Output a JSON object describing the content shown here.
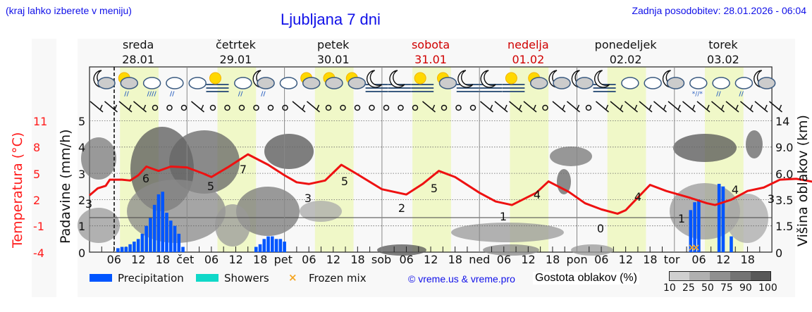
{
  "header": {
    "hint": "(kraj lahko izberete v meniju)",
    "title": "Ljubljana 7 dni",
    "updated": "Zadnja posodobitev: 28.01.2026 - 06:04"
  },
  "days": [
    {
      "name": "sreda",
      "date": "28.01",
      "weekend": false
    },
    {
      "name": "četrtek",
      "date": "29.01",
      "weekend": false
    },
    {
      "name": "petek",
      "date": "30.01",
      "weekend": false
    },
    {
      "name": "sobota",
      "date": "31.01",
      "weekend": true
    },
    {
      "name": "nedelja",
      "date": "01.02",
      "weekend": true
    },
    {
      "name": "ponedeljek",
      "date": "02.02",
      "weekend": false
    },
    {
      "name": "torek",
      "date": "03.02",
      "weekend": false
    }
  ],
  "axes": {
    "temp_label": "Temperatura (°C)",
    "temp_ticks": [
      "11",
      "8",
      "5",
      "2",
      "-1",
      "-4"
    ],
    "precip_label": "Padavine (mm/h)",
    "precip_ticks": [
      "5",
      "4",
      "3",
      "2",
      "1",
      "0"
    ],
    "cloud_label": "Višina oblakov (km)",
    "cloud_ticks": [
      "14",
      "9.0",
      "6.0",
      "3.5",
      "1.5",
      "0"
    ],
    "x_ticks": [
      "06",
      "12",
      "18",
      "čet",
      "06",
      "12",
      "18",
      "pet",
      "06",
      "12",
      "18",
      "sob",
      "06",
      "12",
      "18",
      "ned",
      "06",
      "12",
      "18",
      "pon",
      "06",
      "12",
      "18",
      "tor",
      "06",
      "12",
      "18"
    ]
  },
  "legend": {
    "precipitation": "Precipitation",
    "showers": "Showers",
    "frozen": "Frozen mix",
    "copyright": "© vreme.us & vreme.pro",
    "density_label": "Gostota oblakov (%)",
    "density_ticks": [
      "10",
      "25",
      "50",
      "75",
      "90",
      "100"
    ]
  },
  "colors": {
    "precipitation": "#0055ff",
    "showers": "#10d8c8",
    "frozen": "#f5a623",
    "temperature": "#ee1111",
    "daylight_band": "#f0f8c8",
    "link": "#1010e8",
    "weekend": "#d00000"
  },
  "chart_data": {
    "type": "line+bar",
    "title": "Ljubljana 7 dni",
    "xlabel": "",
    "x_range": [
      "28.01 00:00",
      "03.02 24:00"
    ],
    "series": [
      {
        "name": "Temperatura (°C)",
        "type": "line",
        "labels_shown": [
          {
            "time": "28.01 00",
            "value": 3
          },
          {
            "time": "28.01 14",
            "value": 6
          },
          {
            "time": "29.01 06",
            "value": 5
          },
          {
            "time": "29.01 15",
            "value": 7
          },
          {
            "time": "30.01 06",
            "value": 3
          },
          {
            "time": "30.01 15",
            "value": 5
          },
          {
            "time": "31.01 06",
            "value": 2
          },
          {
            "time": "31.01 15",
            "value": 5
          },
          {
            "time": "01.02 06",
            "value": 1
          },
          {
            "time": "01.02 15",
            "value": 4
          },
          {
            "time": "02.02 06",
            "value": 0
          },
          {
            "time": "02.02 15",
            "value": 4
          },
          {
            "time": "03.02 06",
            "value": 1
          },
          {
            "time": "03.02 15",
            "value": 4
          },
          {
            "time": "03.02 24",
            "value": 3
          }
        ]
      },
      {
        "name": "Precipitation (mm/h)",
        "type": "bar",
        "values": [
          {
            "time": "28.01 07",
            "value": 0.15
          },
          {
            "time": "28.01 08",
            "value": 0.2
          },
          {
            "time": "28.01 09",
            "value": 0.2
          },
          {
            "time": "28.01 10",
            "value": 0.3
          },
          {
            "time": "28.01 11",
            "value": 0.4
          },
          {
            "time": "28.01 12",
            "value": 0.5
          },
          {
            "time": "28.01 13",
            "value": 0.7
          },
          {
            "time": "28.01 14",
            "value": 1.0
          },
          {
            "time": "28.01 15",
            "value": 1.3
          },
          {
            "time": "28.01 16",
            "value": 1.8
          },
          {
            "time": "28.01 17",
            "value": 2.2
          },
          {
            "time": "28.01 18",
            "value": 2.3
          },
          {
            "time": "28.01 19",
            "value": 1.5
          },
          {
            "time": "28.01 20",
            "value": 1.2
          },
          {
            "time": "28.01 21",
            "value": 1.0
          },
          {
            "time": "28.01 22",
            "value": 0.7
          },
          {
            "time": "28.01 23",
            "value": 0.2
          },
          {
            "time": "29.01 17",
            "value": 0.2
          },
          {
            "time": "29.01 18",
            "value": 0.3
          },
          {
            "time": "29.01 19",
            "value": 0.5
          },
          {
            "time": "29.01 20",
            "value": 0.6
          },
          {
            "time": "29.01 21",
            "value": 0.6
          },
          {
            "time": "29.01 22",
            "value": 0.5
          },
          {
            "time": "29.01 23",
            "value": 0.5
          },
          {
            "time": "30.01 00",
            "value": 0.4
          },
          {
            "time": "03.02 04",
            "value": 1.6
          },
          {
            "time": "03.02 05",
            "value": 1.9
          },
          {
            "time": "03.02 06",
            "value": 2.0
          },
          {
            "time": "03.02 11",
            "value": 2.6
          },
          {
            "time": "03.02 12",
            "value": 2.5
          },
          {
            "time": "03.02 14",
            "value": 0.6
          }
        ]
      }
    ],
    "frozen_mix_at": [
      "03.02 04",
      "03.02 05"
    ],
    "precip_ylim": [
      0,
      5
    ],
    "temp_ylim": [
      -4,
      11
    ],
    "cloud_height_ylim_km": [
      0,
      14
    ],
    "legend": [
      "Precipitation",
      "Showers",
      "Frozen mix"
    ],
    "grid": true
  },
  "icons": [
    "moon-cloud",
    "sun-cloud-rain",
    "cloud-heavy-rain",
    "cloud-rain",
    "cloud",
    "sun-fog",
    "cloud-rain",
    "moon-cloud-rain",
    "cloud",
    "sun-cloud",
    "sun-cloud",
    "sun-cloud",
    "moon-fog",
    "moon-fog",
    "sun-fog",
    "sun-cloud",
    "moon-fog",
    "moon-fog",
    "sun-fog",
    "sun-small-cloud",
    "moon-cloud",
    "moon-cloud",
    "moon-fog",
    "cloud",
    "cloud",
    "moon-cloud",
    "cloud-snow",
    "cloud-rain",
    "cloud-rain",
    "moon-cloud"
  ]
}
